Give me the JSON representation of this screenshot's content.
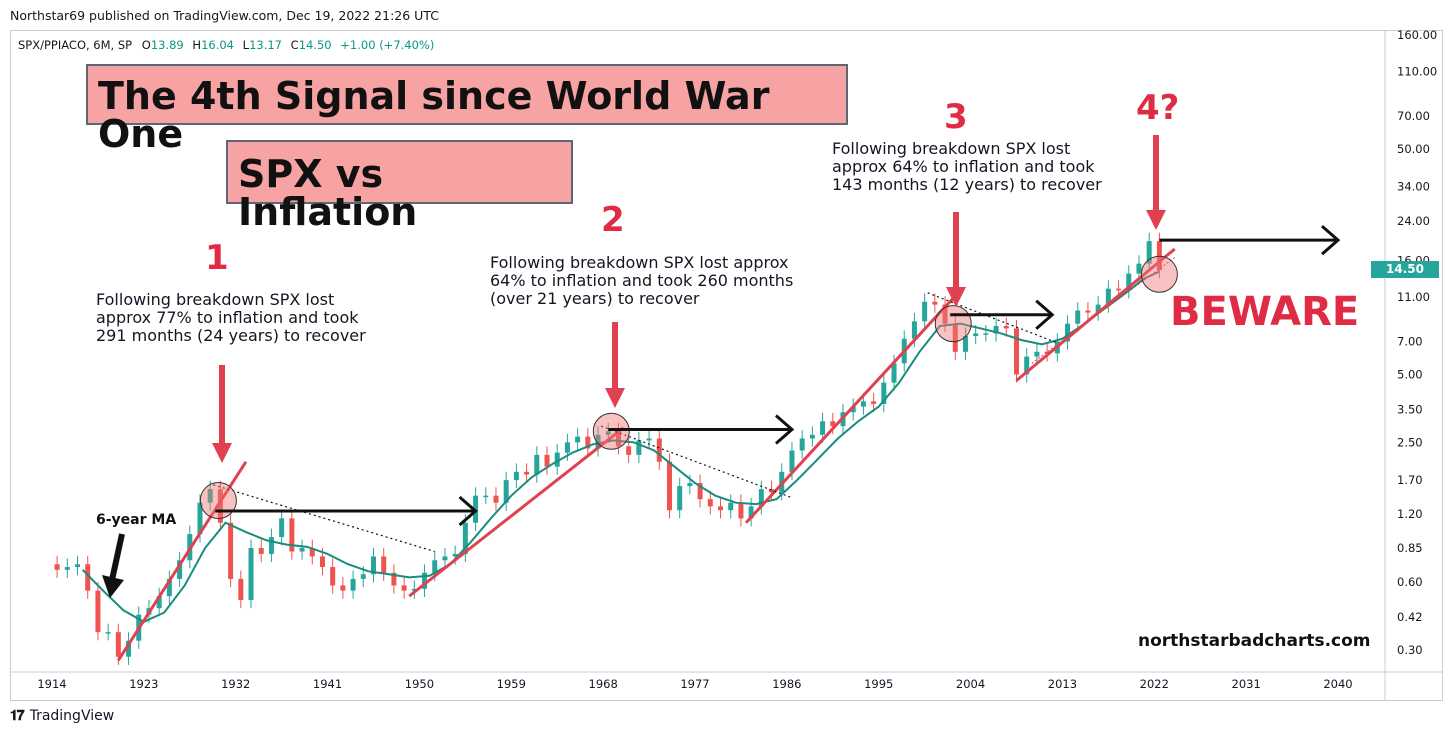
{
  "header": {
    "published": "Northstar69 published on TradingView.com, Dec 19, 2022 21:26 UTC",
    "symbol": "SPX/PPIACO, 6M, SP",
    "open_label": "O",
    "open": "13.89",
    "high_label": "H",
    "high": "16.04",
    "low_label": "L",
    "low": "13.17",
    "close_label": "C",
    "close": "14.50",
    "change": "+1.00 (+7.40%)"
  },
  "annotations": {
    "title": "The 4th Signal since World War One",
    "subtitle": "SPX vs Inflation",
    "note1": "Following breakdown SPX lost\napprox 77% to inflation and took\n291 months (24 years) to recover",
    "note2": "Following breakdown SPX lost approx\n64% to inflation and took 260 months\n(over 21 years) to recover",
    "note3": "Following breakdown SPX lost\napprox 64% to inflation and took\n143 months (12 years) to recover",
    "num1": "1",
    "num2": "2",
    "num3": "3",
    "num4": "4?",
    "beware": "BEWARE",
    "ma_label": "6-year MA",
    "site": "northstarbadcharts.com",
    "price_label": "14.50",
    "footer_brand": "TradingView"
  },
  "chart_data": {
    "type": "candlestick",
    "symbol": "SPX/PPIACO",
    "interval": "6M",
    "scale": "log",
    "ylim": [
      0.26,
      170
    ],
    "y_ticks": [
      0.3,
      0.42,
      0.6,
      0.85,
      1.2,
      1.7,
      2.5,
      3.5,
      5.0,
      7.0,
      11.0,
      16.0,
      24.0,
      34.0,
      50.0,
      70.0,
      110.0,
      160.0
    ],
    "y_tick_labels": [
      "0.30",
      "0.42",
      "0.60",
      "0.85",
      "1.20",
      "1.70",
      "2.50",
      "3.50",
      "5.00",
      "7.00",
      "11.00",
      "16.00",
      "24.00",
      "34.00",
      "50.00",
      "70.00",
      "110.00",
      "160.00"
    ],
    "xlim": [
      1911,
      2045
    ],
    "x_ticks": [
      1914,
      1923,
      1932,
      1941,
      1950,
      1959,
      1968,
      1977,
      1986,
      1995,
      2004,
      2013,
      2022,
      2031,
      2040
    ],
    "last_price": 14.5,
    "series_main": [
      [
        1913,
        0.72
      ],
      [
        1914.5,
        0.68
      ],
      [
        1915.5,
        0.7
      ],
      [
        1916.5,
        0.72
      ],
      [
        1917.5,
        0.55
      ],
      [
        1918.5,
        0.36
      ],
      [
        1919.5,
        0.36
      ],
      [
        1920.5,
        0.28
      ],
      [
        1921.5,
        0.33
      ],
      [
        1922.5,
        0.43
      ],
      [
        1923.5,
        0.46
      ],
      [
        1924.5,
        0.52
      ],
      [
        1925.5,
        0.62
      ],
      [
        1926.5,
        0.75
      ],
      [
        1927.5,
        0.98
      ],
      [
        1928.5,
        1.35
      ],
      [
        1929.5,
        1.55
      ],
      [
        1930.5,
        1.1
      ],
      [
        1931.5,
        0.62
      ],
      [
        1932.5,
        0.5
      ],
      [
        1933.5,
        0.85
      ],
      [
        1934.5,
        0.8
      ],
      [
        1935.5,
        0.95
      ],
      [
        1936.5,
        1.15
      ],
      [
        1937.5,
        0.82
      ],
      [
        1938.5,
        0.85
      ],
      [
        1939.5,
        0.78
      ],
      [
        1940.5,
        0.7
      ],
      [
        1941.5,
        0.58
      ],
      [
        1942.5,
        0.55
      ],
      [
        1943.5,
        0.62
      ],
      [
        1944.5,
        0.65
      ],
      [
        1945.5,
        0.78
      ],
      [
        1946.5,
        0.66
      ],
      [
        1947.5,
        0.58
      ],
      [
        1948.5,
        0.55
      ],
      [
        1949.5,
        0.56
      ],
      [
        1950.5,
        0.66
      ],
      [
        1951.5,
        0.75
      ],
      [
        1952.5,
        0.78
      ],
      [
        1953.5,
        0.8
      ],
      [
        1954.5,
        1.1
      ],
      [
        1955.5,
        1.45
      ],
      [
        1956.5,
        1.45
      ],
      [
        1957.5,
        1.35
      ],
      [
        1958.5,
        1.7
      ],
      [
        1959.5,
        1.85
      ],
      [
        1960.5,
        1.8
      ],
      [
        1961.5,
        2.2
      ],
      [
        1962.5,
        1.95
      ],
      [
        1963.5,
        2.25
      ],
      [
        1964.5,
        2.5
      ],
      [
        1965.5,
        2.65
      ],
      [
        1966.5,
        2.35
      ],
      [
        1967.5,
        2.7
      ],
      [
        1968.5,
        2.8
      ],
      [
        1969.5,
        2.4
      ],
      [
        1970.5,
        2.2
      ],
      [
        1971.5,
        2.55
      ],
      [
        1972.5,
        2.6
      ],
      [
        1973.5,
        2.05
      ],
      [
        1974.5,
        1.25
      ],
      [
        1975.5,
        1.6
      ],
      [
        1976.5,
        1.65
      ],
      [
        1977.5,
        1.4
      ],
      [
        1978.5,
        1.3
      ],
      [
        1979.5,
        1.25
      ],
      [
        1980.5,
        1.35
      ],
      [
        1981.5,
        1.15
      ],
      [
        1982.5,
        1.3
      ],
      [
        1983.5,
        1.55
      ],
      [
        1984.5,
        1.5
      ],
      [
        1985.5,
        1.85
      ],
      [
        1986.5,
        2.3
      ],
      [
        1987.5,
        2.6
      ],
      [
        1988.5,
        2.7
      ],
      [
        1989.5,
        3.1
      ],
      [
        1990.5,
        2.95
      ],
      [
        1991.5,
        3.4
      ],
      [
        1992.5,
        3.6
      ],
      [
        1993.5,
        3.8
      ],
      [
        1994.5,
        3.7
      ],
      [
        1995.5,
        4.6
      ],
      [
        1996.5,
        5.6
      ],
      [
        1997.5,
        7.2
      ],
      [
        1998.5,
        8.6
      ],
      [
        1999.5,
        10.5
      ],
      [
        2000.5,
        10.2
      ],
      [
        2001.5,
        8.4
      ],
      [
        2002.5,
        6.3
      ],
      [
        2003.5,
        7.4
      ],
      [
        2004.5,
        7.6
      ],
      [
        2005.5,
        7.6
      ],
      [
        2006.5,
        8.2
      ],
      [
        2007.5,
        8.0
      ],
      [
        2008.5,
        5.0
      ],
      [
        2009.5,
        6.0
      ],
      [
        2010.5,
        6.3
      ],
      [
        2011.5,
        6.2
      ],
      [
        2012.5,
        7.0
      ],
      [
        2013.5,
        8.4
      ],
      [
        2014.5,
        9.6
      ],
      [
        2015.5,
        9.4
      ],
      [
        2016.5,
        10.2
      ],
      [
        2017.5,
        12.0
      ],
      [
        2018.5,
        11.8
      ],
      [
        2019.5,
        14.0
      ],
      [
        2020.5,
        15.5
      ],
      [
        2021.5,
        19.5
      ],
      [
        2022.5,
        14.5
      ]
    ],
    "moving_average_6y": [
      [
        1917,
        0.68
      ],
      [
        1919,
        0.55
      ],
      [
        1921,
        0.45
      ],
      [
        1923,
        0.4
      ],
      [
        1925,
        0.44
      ],
      [
        1927,
        0.58
      ],
      [
        1929,
        0.85
      ],
      [
        1931,
        1.1
      ],
      [
        1933,
        1.0
      ],
      [
        1935,
        0.92
      ],
      [
        1937,
        0.88
      ],
      [
        1939,
        0.86
      ],
      [
        1941,
        0.8
      ],
      [
        1943,
        0.72
      ],
      [
        1945,
        0.67
      ],
      [
        1947,
        0.65
      ],
      [
        1949,
        0.63
      ],
      [
        1951,
        0.64
      ],
      [
        1953,
        0.72
      ],
      [
        1955,
        0.9
      ],
      [
        1957,
        1.15
      ],
      [
        1959,
        1.45
      ],
      [
        1961,
        1.75
      ],
      [
        1963,
        2.0
      ],
      [
        1965,
        2.25
      ],
      [
        1967,
        2.45
      ],
      [
        1969,
        2.55
      ],
      [
        1971,
        2.5
      ],
      [
        1973,
        2.3
      ],
      [
        1975,
        1.95
      ],
      [
        1977,
        1.65
      ],
      [
        1979,
        1.45
      ],
      [
        1981,
        1.35
      ],
      [
        1983,
        1.33
      ],
      [
        1985,
        1.4
      ],
      [
        1987,
        1.7
      ],
      [
        1989,
        2.1
      ],
      [
        1991,
        2.6
      ],
      [
        1993,
        3.1
      ],
      [
        1995,
        3.6
      ],
      [
        1997,
        4.6
      ],
      [
        1999,
        6.3
      ],
      [
        2001,
        8.2
      ],
      [
        2003,
        8.4
      ],
      [
        2005,
        8.0
      ],
      [
        2007,
        7.6
      ],
      [
        2009,
        7.1
      ],
      [
        2011,
        6.8
      ],
      [
        2013,
        7.2
      ],
      [
        2015,
        8.3
      ],
      [
        2017,
        9.7
      ],
      [
        2019,
        11.3
      ],
      [
        2021,
        13.3
      ],
      [
        2022.5,
        14.3
      ]
    ]
  }
}
